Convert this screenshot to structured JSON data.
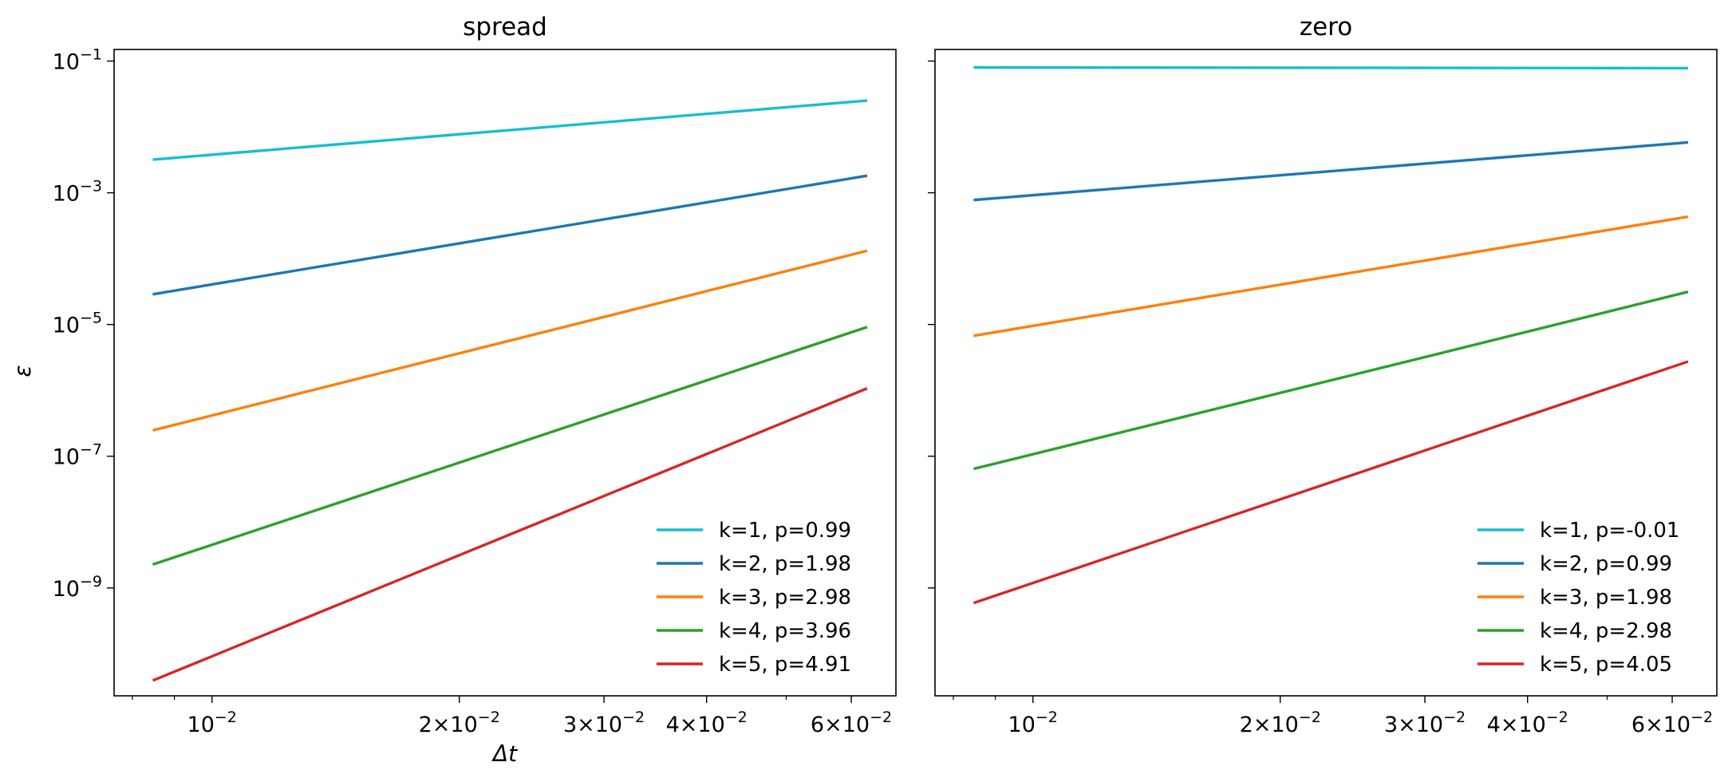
{
  "figure": {
    "xlabel": "Δt",
    "ylabel": "ε"
  },
  "chart_data": [
    {
      "type": "line",
      "title": "spread",
      "xlabel": "Δt",
      "ylabel": "ε",
      "xscale": "log",
      "yscale": "log",
      "xlim": [
        0.0076,
        0.068
      ],
      "ylim": [
        2.3e-11,
        0.15
      ],
      "grid": false,
      "legend_position": "lower right",
      "x_ticks": [
        {
          "value": 0.01,
          "mantissa": "",
          "exponent": "−2"
        },
        {
          "value": 0.02,
          "mantissa": "2",
          "exponent": "−2"
        },
        {
          "value": 0.03,
          "mantissa": "3",
          "exponent": "−2"
        },
        {
          "value": 0.04,
          "mantissa": "4",
          "exponent": "−2"
        },
        {
          "value": 0.06,
          "mantissa": "6",
          "exponent": "−2"
        }
      ],
      "y_ticks": [
        {
          "value": 0.1,
          "exponent": "−1"
        },
        {
          "value": 0.001,
          "exponent": "−3"
        },
        {
          "value": 1e-05,
          "exponent": "−5"
        },
        {
          "value": 1e-07,
          "exponent": "−7"
        },
        {
          "value": 1e-09,
          "exponent": "−9"
        }
      ],
      "series": [
        {
          "name": "k=1, p=0.99",
          "color": "#17becf",
          "x": [
            0.0085,
            0.0625
          ],
          "y": [
            0.0032,
            0.025
          ]
        },
        {
          "name": "k=2, p=1.98",
          "color": "#1f77b4",
          "x": [
            0.0085,
            0.0625
          ],
          "y": [
            2.9e-05,
            0.0018
          ]
        },
        {
          "name": "k=3, p=2.98",
          "color": "#ff7f0e",
          "x": [
            0.0085,
            0.0625
          ],
          "y": [
            2.5e-07,
            0.00013
          ]
        },
        {
          "name": "k=4, p=3.96",
          "color": "#2ca02c",
          "x": [
            0.0085,
            0.0625
          ],
          "y": [
            2.3e-09,
            9e-06
          ]
        },
        {
          "name": "k=5, p=4.91",
          "color": "#d62728",
          "x": [
            0.0085,
            0.0625
          ],
          "y": [
            4e-11,
            1.05e-06
          ]
        }
      ]
    },
    {
      "type": "line",
      "title": "zero",
      "xlabel": "",
      "ylabel": "",
      "xscale": "log",
      "yscale": "log",
      "xlim": [
        0.0076,
        0.068
      ],
      "ylim": [
        2.3e-11,
        0.15
      ],
      "grid": false,
      "legend_position": "lower right",
      "x_ticks": [
        {
          "value": 0.01,
          "mantissa": "",
          "exponent": "−2"
        },
        {
          "value": 0.02,
          "mantissa": "2",
          "exponent": "−2"
        },
        {
          "value": 0.03,
          "mantissa": "3",
          "exponent": "−2"
        },
        {
          "value": 0.04,
          "mantissa": "4",
          "exponent": "−2"
        },
        {
          "value": 0.06,
          "mantissa": "6",
          "exponent": "−2"
        }
      ],
      "y_ticks": [
        {
          "value": 0.1,
          "exponent": ""
        },
        {
          "value": 0.001,
          "exponent": ""
        },
        {
          "value": 1e-05,
          "exponent": ""
        },
        {
          "value": 1e-07,
          "exponent": ""
        },
        {
          "value": 1e-09,
          "exponent": ""
        }
      ],
      "series": [
        {
          "name": "k=1, p=-0.01",
          "color": "#17becf",
          "x": [
            0.0085,
            0.0625
          ],
          "y": [
            0.08,
            0.078
          ]
        },
        {
          "name": "k=2, p=0.99",
          "color": "#1f77b4",
          "x": [
            0.0085,
            0.0625
          ],
          "y": [
            0.00078,
            0.0058
          ]
        },
        {
          "name": "k=3, p=1.98",
          "color": "#ff7f0e",
          "x": [
            0.0085,
            0.0625
          ],
          "y": [
            6.8e-06,
            0.00043
          ]
        },
        {
          "name": "k=4, p=2.98",
          "color": "#2ca02c",
          "x": [
            0.0085,
            0.0625
          ],
          "y": [
            6.5e-08,
            3.1e-05
          ]
        },
        {
          "name": "k=5, p=4.05",
          "color": "#d62728",
          "x": [
            0.0085,
            0.0625
          ],
          "y": [
            6e-10,
            2.7e-06
          ]
        }
      ]
    }
  ]
}
